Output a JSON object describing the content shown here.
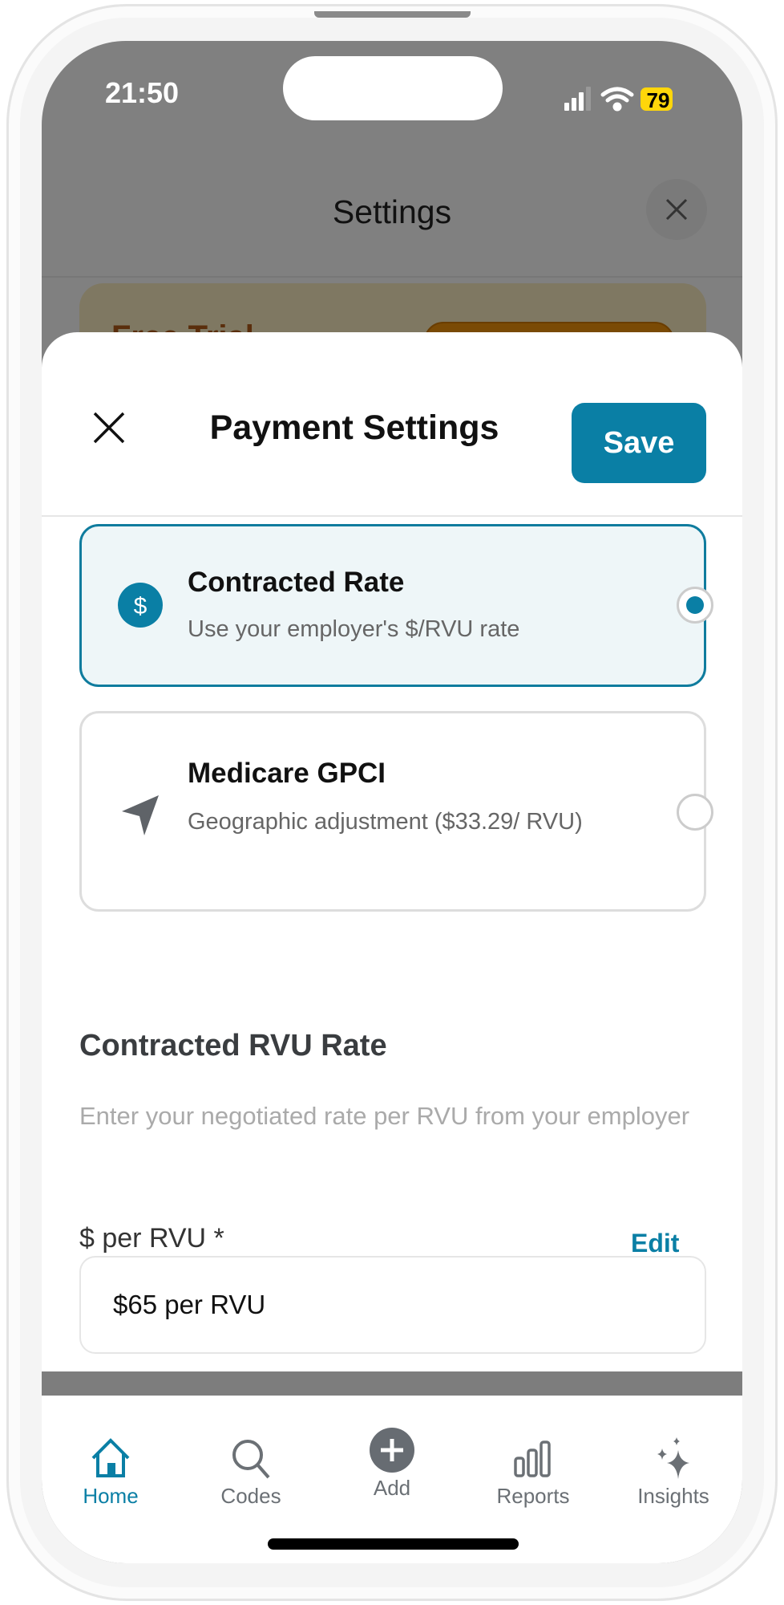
{
  "status_bar": {
    "time": "21:50",
    "battery": "79"
  },
  "background": {
    "title": "Settings",
    "trial_text": "Free Trial"
  },
  "sheet": {
    "title": "Payment Settings",
    "save_label": "Save",
    "options": [
      {
        "title": "Contracted Rate",
        "subtitle": "Use your employer's $/RVU rate",
        "icon": "dollar-circle-icon",
        "selected": true
      },
      {
        "title": "Medicare GPCI",
        "subtitle": "Geographic adjustment ($33.29/ RVU)",
        "icon": "navigation-arrow-icon",
        "selected": false
      }
    ],
    "section_title": "Contracted RVU Rate",
    "section_desc": "Enter your negotiated rate per RVU from your employer",
    "field_label": "$ per RVU *",
    "edit_label": "Edit",
    "field_value": "$65 per RVU"
  },
  "tabbar": {
    "active": "Home",
    "items": [
      {
        "label": "Home"
      },
      {
        "label": "Codes"
      },
      {
        "label": "Add"
      },
      {
        "label": "Reports"
      },
      {
        "label": "Insights"
      }
    ]
  },
  "colors": {
    "accent": "#0a7fa5",
    "battery": "#ffd60a"
  }
}
